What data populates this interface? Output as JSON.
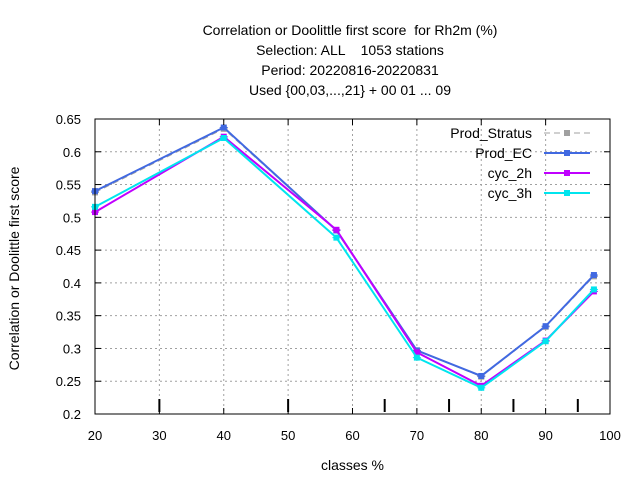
{
  "chart_data": {
    "type": "line",
    "title_lines": [
      "Correlation or Doolittle first score  for Rh2m (%)",
      "Selection: ALL    1053 stations",
      "Period: 20220816-20220831",
      "Used {00,03,...,21} + 00 01 ... 09"
    ],
    "xlabel": "classes %",
    "ylabel": "Correlation or Doolittle first score",
    "xlim": [
      20,
      100
    ],
    "ylim": [
      0.2,
      0.65
    ],
    "xticks": [
      20,
      30,
      40,
      50,
      60,
      70,
      80,
      90,
      100
    ],
    "yticks": [
      0.2,
      0.25,
      0.3,
      0.35,
      0.4,
      0.45,
      0.5,
      0.55,
      0.6,
      0.65
    ],
    "xtick_labels": [
      "20",
      "30",
      "40",
      "50",
      "60",
      "70",
      "80",
      "90",
      "100"
    ],
    "ytick_labels": [
      "0.2",
      "0.25",
      "0.3",
      "0.35",
      "0.4",
      "0.45",
      "0.5",
      "0.55",
      "0.6",
      "0.65"
    ],
    "class_marks": [
      30,
      50,
      65,
      75,
      85,
      95
    ],
    "grid": true,
    "legend_position": "top-right",
    "x": [
      20,
      40,
      57.5,
      70,
      80,
      90,
      97.5
    ],
    "series": [
      {
        "name": "Prod_Stratus",
        "color": "#a0a0a0",
        "dashed": true,
        "values": [
          0.538,
          0.635,
          0.48,
          0.297,
          0.257,
          0.333,
          0.41
        ]
      },
      {
        "name": "Prod_EC",
        "color": "#4169e1",
        "dashed": false,
        "values": [
          0.54,
          0.637,
          0.48,
          0.297,
          0.258,
          0.334,
          0.412
        ]
      },
      {
        "name": "cyc_2h",
        "color": "#c000ff",
        "dashed": false,
        "values": [
          0.508,
          0.623,
          0.481,
          0.294,
          0.243,
          0.312,
          0.387
        ]
      },
      {
        "name": "cyc_3h",
        "color": "#00e5ee",
        "dashed": false,
        "values": [
          0.516,
          0.621,
          0.469,
          0.286,
          0.24,
          0.311,
          0.39
        ]
      }
    ]
  }
}
